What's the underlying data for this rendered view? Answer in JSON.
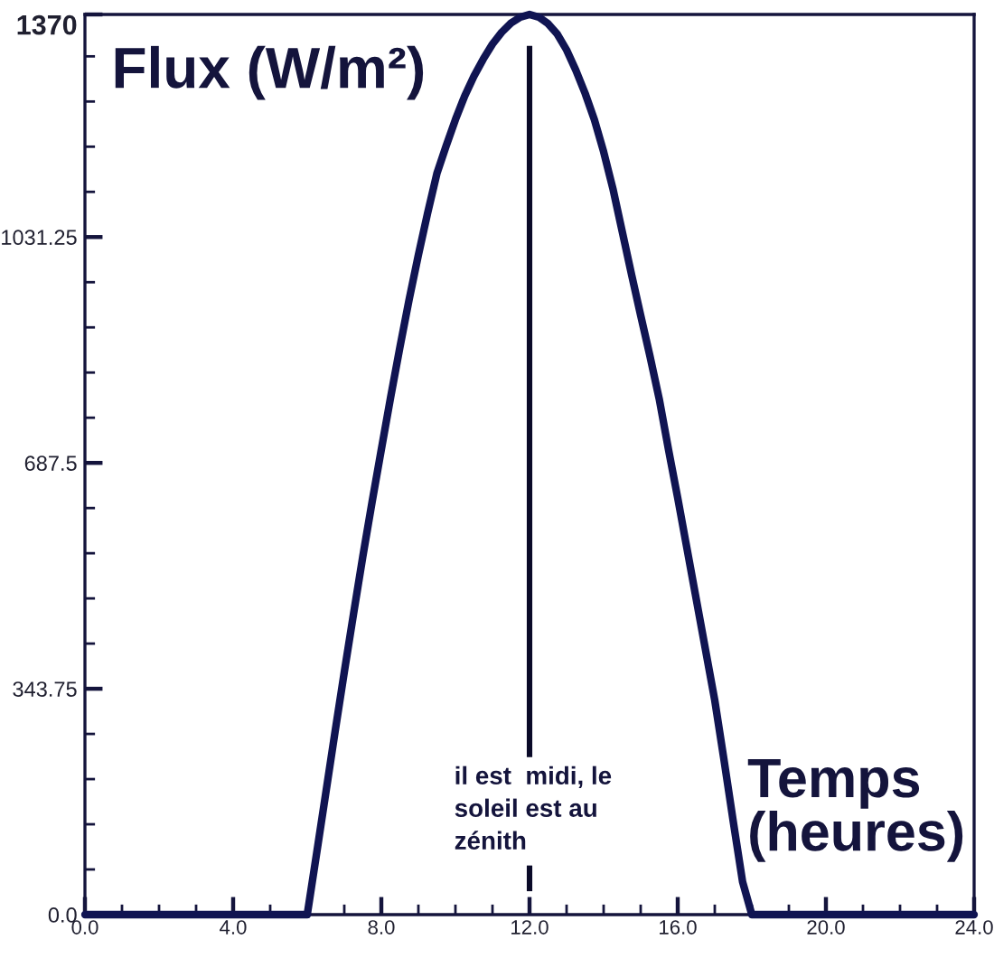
{
  "chart_data": {
    "type": "line",
    "xlabel": "Temps\n(heures)",
    "ylabel": "Flux (W/m²)",
    "x": [
      0,
      6,
      6.25,
      6.5,
      6.75,
      7,
      7.25,
      7.5,
      7.75,
      8,
      8.25,
      8.5,
      8.75,
      9,
      9.25,
      9.5,
      9.75,
      10,
      10.25,
      10.5,
      10.75,
      11,
      11.25,
      11.5,
      11.75,
      12,
      12.25,
      12.5,
      12.75,
      13,
      13.25,
      13.5,
      13.75,
      14,
      14.25,
      14.5,
      14.75,
      15,
      15.25,
      15.5,
      15.75,
      16,
      16.25,
      16.5,
      16.75,
      17,
      17.25,
      17.5,
      17.75,
      18,
      24
    ],
    "series": [
      {
        "color": "#101452",
        "values": [
          0,
          0,
          92,
          185,
          278,
          369,
          458,
          545,
          628,
          708,
          787,
          863,
          936,
          1004,
          1068,
          1128,
          1170,
          1210,
          1246,
          1276,
          1302,
          1325,
          1343,
          1357,
          1366,
          1370,
          1366,
          1356,
          1340,
          1316,
          1285,
          1250,
          1210,
          1161,
          1105,
          1040,
          975,
          912,
          850,
          785,
          708,
          634,
          557,
          480,
          403,
          326,
          235,
          141,
          50,
          0,
          0
        ]
      }
    ],
    "xlim": [
      0,
      24
    ],
    "ylim": [
      0,
      1370
    ],
    "xticks": [
      {
        "value": 0,
        "label": "0.0"
      },
      {
        "value": 4,
        "label": "4.0"
      },
      {
        "value": 8,
        "label": "8.0"
      },
      {
        "value": 12,
        "label": "12.0"
      },
      {
        "value": 16,
        "label": "16.0"
      },
      {
        "value": 20,
        "label": "20.0"
      },
      {
        "value": 24,
        "label": "24.0"
      }
    ],
    "yticks": [
      {
        "value": 0,
        "label": "0.0"
      },
      343.75,
      687.5,
      1031.25,
      1370
    ],
    "ref_lines": [
      {
        "axis": "x",
        "value": 12,
        "label": "il est  midi, le\nsoleil est au\nzénith",
        "color": "#0a0a28"
      }
    ]
  }
}
